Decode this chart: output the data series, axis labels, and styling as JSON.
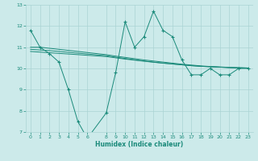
{
  "title": "",
  "xlabel": "Humidex (Indice chaleur)",
  "x": [
    0,
    1,
    2,
    3,
    4,
    5,
    6,
    8,
    9,
    10,
    11,
    12,
    13,
    14,
    15,
    16,
    17,
    18,
    19,
    20,
    21,
    22,
    23
  ],
  "y_data": [
    11.8,
    11.0,
    10.7,
    10.3,
    9.0,
    7.5,
    6.7,
    7.9,
    9.8,
    12.2,
    11.0,
    11.5,
    12.7,
    11.8,
    11.5,
    10.4,
    9.7,
    9.7,
    10.0,
    9.7,
    9.7,
    10.0,
    10.0
  ],
  "trend_lines": [
    [
      11.0,
      11.0,
      10.95,
      10.9,
      10.85,
      10.8,
      10.75,
      10.65,
      10.58,
      10.52,
      10.46,
      10.4,
      10.35,
      10.3,
      10.25,
      10.2,
      10.16,
      10.12,
      10.09,
      10.07,
      10.05,
      10.03,
      10.02
    ],
    [
      10.9,
      10.87,
      10.84,
      10.8,
      10.76,
      10.72,
      10.68,
      10.6,
      10.53,
      10.47,
      10.41,
      10.35,
      10.3,
      10.25,
      10.21,
      10.17,
      10.13,
      10.1,
      10.08,
      10.06,
      10.04,
      10.03,
      10.02
    ],
    [
      10.8,
      10.77,
      10.74,
      10.71,
      10.68,
      10.65,
      10.62,
      10.56,
      10.5,
      10.44,
      10.39,
      10.34,
      10.29,
      10.25,
      10.21,
      10.17,
      10.13,
      10.1,
      10.08,
      10.06,
      10.04,
      10.03,
      10.02
    ]
  ],
  "line_color": "#1a8a7a",
  "bg_color": "#cceaea",
  "grid_color": "#aad4d4",
  "ylim": [
    7,
    13
  ],
  "xlim": [
    -0.5,
    23.5
  ],
  "yticks": [
    7,
    8,
    9,
    10,
    11,
    12,
    13
  ],
  "xticks": [
    0,
    1,
    2,
    3,
    4,
    5,
    6,
    8,
    9,
    10,
    11,
    12,
    13,
    14,
    15,
    16,
    17,
    18,
    19,
    20,
    21,
    22,
    23
  ]
}
